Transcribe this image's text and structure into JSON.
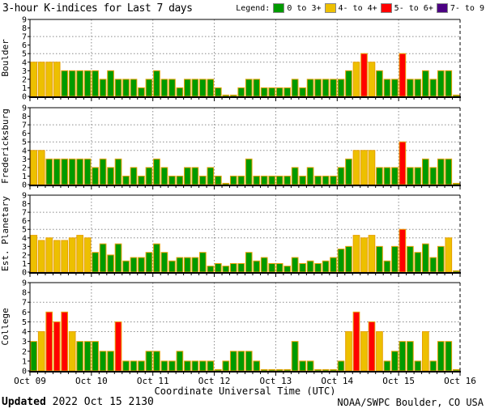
{
  "header": {
    "title": "3-hour K-indices for Last 7 days",
    "legend_label": "Legend:"
  },
  "legend": [
    {
      "label": "0 to 3+",
      "color": "#009A00",
      "max": 3.5
    },
    {
      "label": "4- to 4+",
      "color": "#EDC000",
      "max": 4.5
    },
    {
      "label": "5- to 6+",
      "color": "#FF0000",
      "max": 6.5
    },
    {
      "label": "7- to 9",
      "color": "#4B0082",
      "max": 9.5
    }
  ],
  "footer": {
    "updated_label": "Updated",
    "updated_value": " 2022 Oct 15 2130",
    "credit": "NOAA/SWPC Boulder, CO USA"
  },
  "chart_data": {
    "type": "bar",
    "title": "3-hour K-indices for Last 7 days",
    "xlabel": "Coordinate Universal Time (UTC)",
    "ylim": [
      0,
      9
    ],
    "y_ticks": [
      0,
      1,
      2,
      3,
      4,
      5,
      6,
      7,
      8,
      9
    ],
    "grid_levels": [
      4,
      5,
      7
    ],
    "legend_position": "top-right",
    "x_tick_labels": [
      "Oct 09",
      "Oct 10",
      "Oct 11",
      "Oct 12",
      "Oct 13",
      "Oct 14",
      "Oct 15",
      "Oct 16"
    ],
    "bars_per_day": 8,
    "bar_hours": 3,
    "bar_outline": "#E8A000",
    "panels": [
      {
        "station": "Boulder",
        "values": [
          4,
          4,
          4,
          4,
          3,
          3,
          3,
          3,
          3,
          2,
          3,
          2,
          2,
          2,
          1,
          2,
          3,
          2,
          2,
          1,
          2,
          2,
          2,
          2,
          1,
          0,
          0,
          1,
          2,
          2,
          1,
          1,
          1,
          1,
          2,
          1,
          2,
          2,
          2,
          2,
          2,
          3,
          4,
          5,
          4,
          3,
          2,
          2,
          5,
          2,
          2,
          3,
          2,
          3,
          3,
          0
        ]
      },
      {
        "station": "Fredericksburg",
        "values": [
          4,
          4,
          3,
          3,
          3,
          3,
          3,
          3,
          2,
          3,
          2,
          3,
          1,
          2,
          1,
          2,
          3,
          2,
          1,
          1,
          2,
          2,
          1,
          2,
          1,
          0,
          1,
          1,
          3,
          1,
          1,
          1,
          1,
          1,
          2,
          1,
          2,
          1,
          1,
          1,
          2,
          3,
          4,
          4,
          4,
          2,
          2,
          2,
          5,
          2,
          2,
          3,
          2,
          3,
          3,
          0
        ]
      },
      {
        "station": "Est. Planetary",
        "values": [
          4.3,
          3.7,
          4,
          3.7,
          3.7,
          4,
          4.3,
          4,
          2.3,
          3.3,
          2,
          3.3,
          1.3,
          1.7,
          1.7,
          2.3,
          3.3,
          2.3,
          1.3,
          1.7,
          1.7,
          1.7,
          2.3,
          0.7,
          1,
          0.7,
          1,
          1,
          2.3,
          1.3,
          1.7,
          1,
          1,
          0.7,
          1.7,
          1,
          1.3,
          1,
          1.3,
          1.7,
          2.7,
          3,
          4.3,
          4,
          4.3,
          3,
          1.3,
          3,
          5,
          3,
          2.3,
          3.3,
          1.7,
          3,
          4,
          0
        ]
      },
      {
        "station": "College",
        "values": [
          3,
          4,
          6,
          5,
          6,
          4,
          3,
          3,
          3,
          2,
          2,
          5,
          1,
          1,
          1,
          2,
          2,
          1,
          1,
          2,
          1,
          1,
          1,
          1,
          0,
          1,
          2,
          2,
          2,
          1,
          0,
          0,
          0,
          0,
          3,
          1,
          1,
          0,
          0,
          0,
          1,
          4,
          6,
          4,
          5,
          4,
          1,
          2,
          3,
          3,
          1,
          4,
          1,
          3,
          3,
          0
        ]
      }
    ]
  }
}
